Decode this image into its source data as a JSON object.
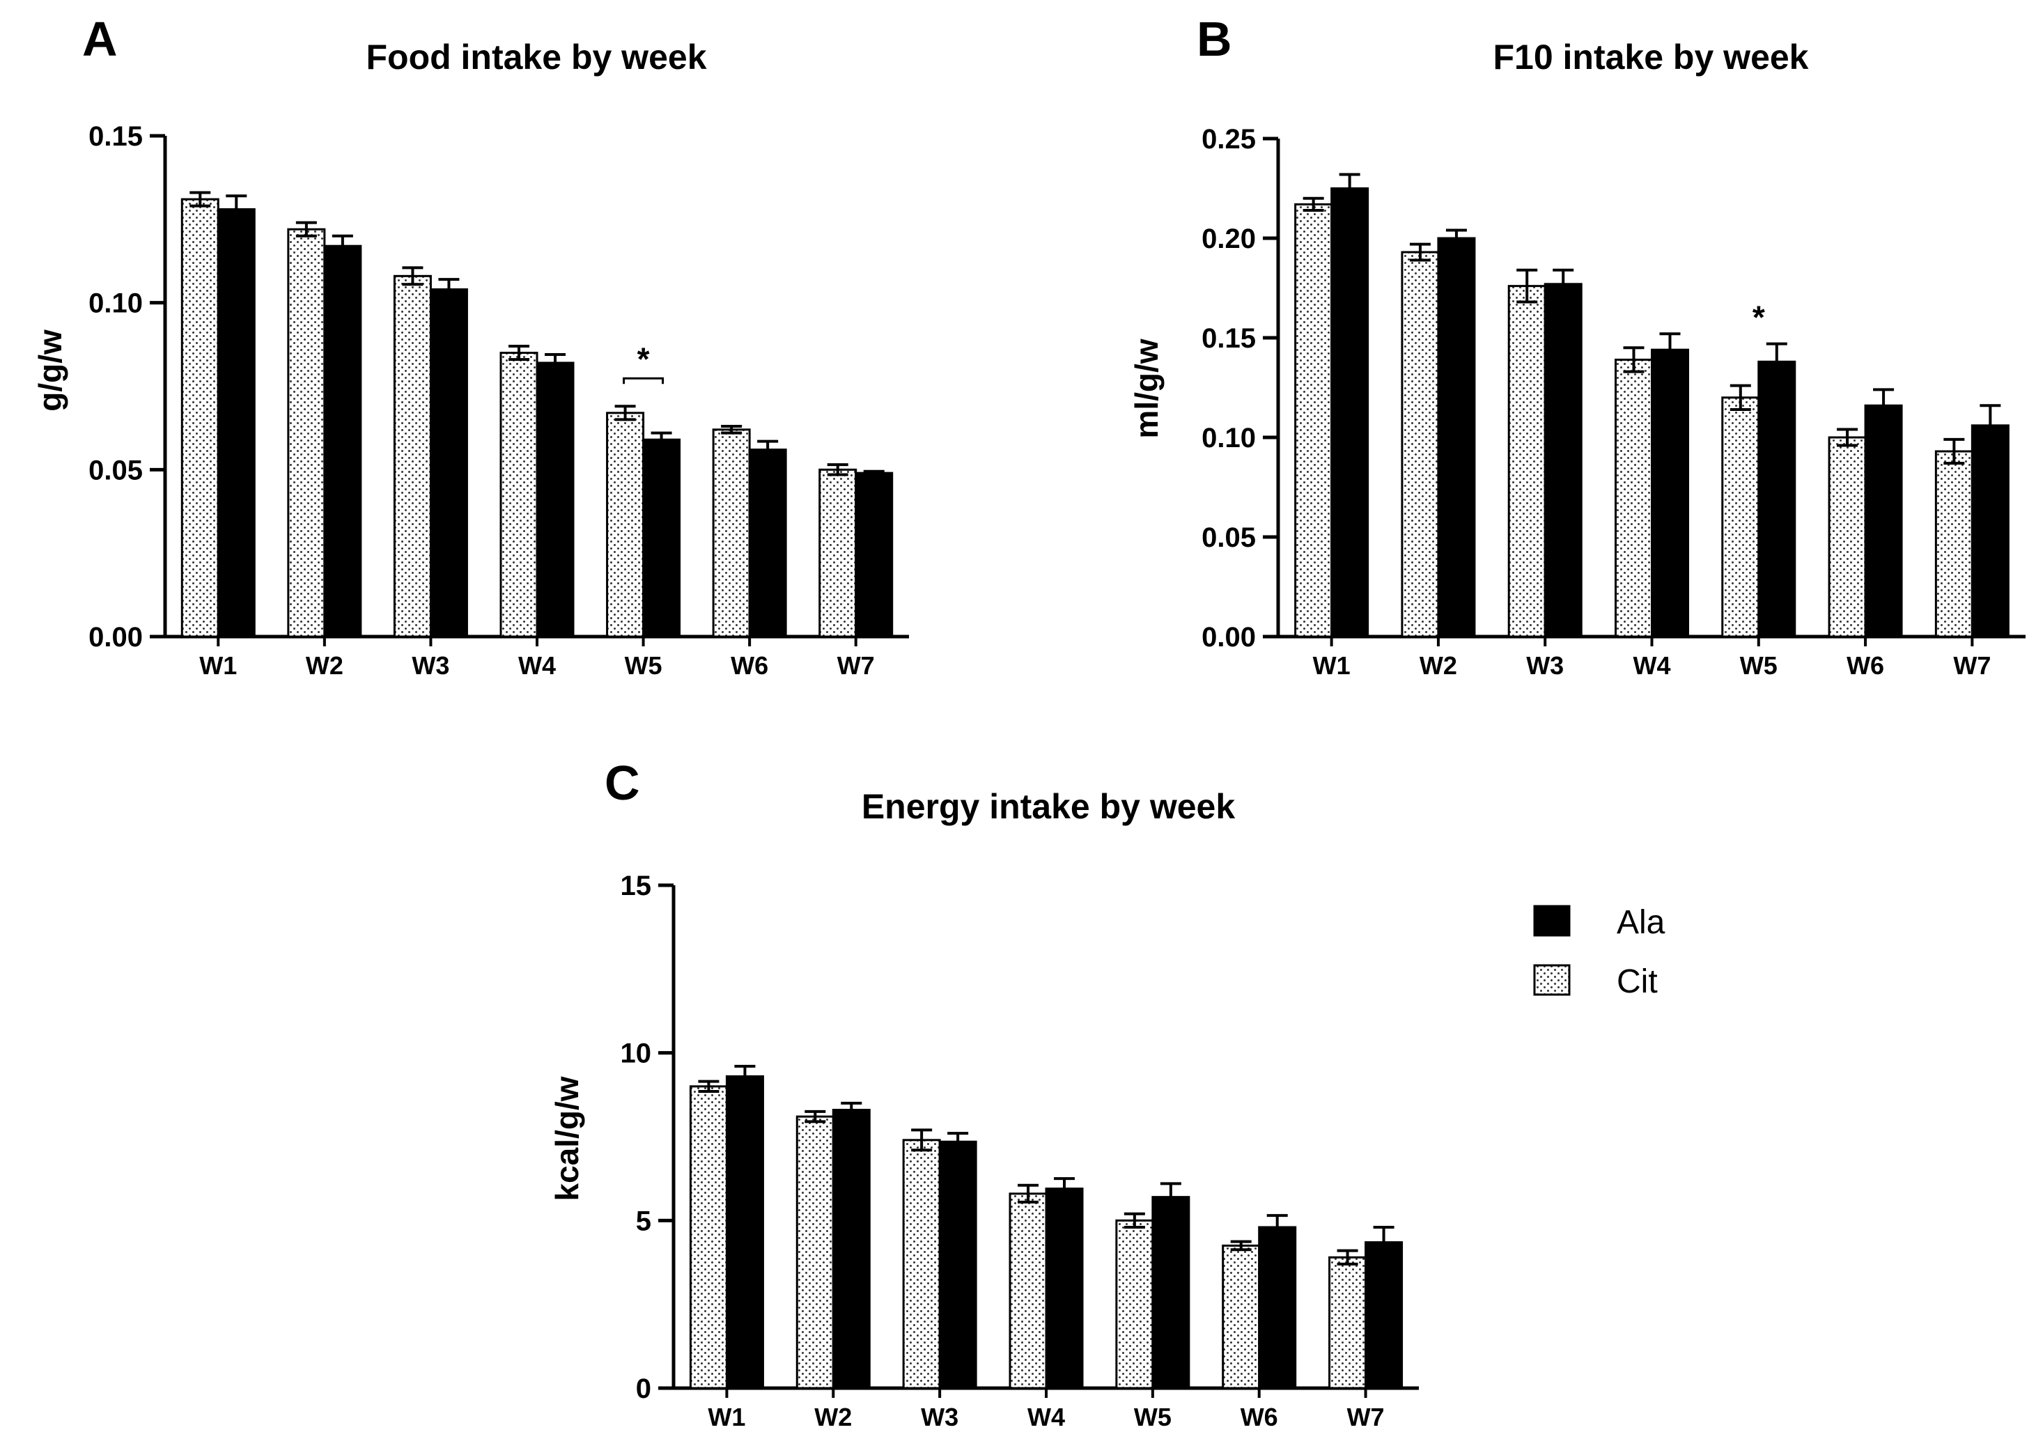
{
  "colors": {
    "ala": "#000000",
    "cit_dots": "#333333",
    "axis": "#000000"
  },
  "legend": {
    "items": [
      {
        "label": "Ala",
        "style": "solid"
      },
      {
        "label": "Cit",
        "style": "dotted"
      }
    ],
    "position": "right of panel C"
  },
  "chart_data": [
    {
      "type": "bar",
      "panel": "A",
      "title": "Food intake by week",
      "xlabel": "",
      "ylabel": "g/g/w",
      "categories": [
        "W1",
        "W2",
        "W3",
        "W4",
        "W5",
        "W6",
        "W7"
      ],
      "ylim": [
        0,
        0.15
      ],
      "yticks": [
        0,
        0.05,
        0.1,
        0.15
      ],
      "ytick_labels": [
        "0.00",
        "0.05",
        "0.10",
        "0.15"
      ],
      "series": [
        {
          "name": "Cit",
          "values": [
            0.131,
            0.122,
            0.108,
            0.085,
            0.067,
            0.062,
            0.05
          ],
          "errors": [
            0.002,
            0.002,
            0.0025,
            0.002,
            0.002,
            0.001,
            0.0015
          ]
        },
        {
          "name": "Ala",
          "values": [
            0.128,
            0.117,
            0.104,
            0.082,
            0.059,
            0.056,
            0.049
          ],
          "errors": [
            0.004,
            0.003,
            0.003,
            0.0025,
            0.002,
            0.0025,
            0.0005
          ]
        }
      ],
      "annotations": [
        {
          "category": "W5",
          "text": "*",
          "bracket": true
        }
      ]
    },
    {
      "type": "bar",
      "panel": "B",
      "title": "F10 intake by week",
      "xlabel": "",
      "ylabel": "ml/g/w",
      "categories": [
        "W1",
        "W2",
        "W3",
        "W4",
        "W5",
        "W6",
        "W7"
      ],
      "ylim": [
        0,
        0.25
      ],
      "yticks": [
        0,
        0.05,
        0.1,
        0.15,
        0.2,
        0.25
      ],
      "ytick_labels": [
        "0.00",
        "0.05",
        "0.10",
        "0.15",
        "0.20",
        "0.25"
      ],
      "series": [
        {
          "name": "Cit",
          "values": [
            0.217,
            0.193,
            0.176,
            0.139,
            0.12,
            0.1,
            0.093
          ],
          "errors": [
            0.003,
            0.004,
            0.008,
            0.006,
            0.006,
            0.004,
            0.006
          ]
        },
        {
          "name": "Ala",
          "values": [
            0.225,
            0.2,
            0.177,
            0.144,
            0.138,
            0.116,
            0.106
          ],
          "errors": [
            0.007,
            0.004,
            0.007,
            0.008,
            0.009,
            0.008,
            0.01
          ]
        }
      ],
      "annotations": [
        {
          "category": "W5",
          "text": "*",
          "bracket": false
        }
      ]
    },
    {
      "type": "bar",
      "panel": "C",
      "title": "Energy intake by week",
      "xlabel": "",
      "ylabel": "kcal/g/w",
      "categories": [
        "W1",
        "W2",
        "W3",
        "W4",
        "W5",
        "W6",
        "W7"
      ],
      "ylim": [
        0,
        15
      ],
      "yticks": [
        0,
        5,
        10,
        15
      ],
      "ytick_labels": [
        "0",
        "5",
        "10",
        "15"
      ],
      "series": [
        {
          "name": "Cit",
          "values": [
            9.0,
            8.1,
            7.4,
            5.8,
            5.0,
            4.25,
            3.9
          ],
          "errors": [
            0.15,
            0.15,
            0.3,
            0.25,
            0.2,
            0.12,
            0.2
          ]
        },
        {
          "name": "Ala",
          "values": [
            9.3,
            8.3,
            7.35,
            5.95,
            5.7,
            4.8,
            4.35
          ],
          "errors": [
            0.3,
            0.2,
            0.25,
            0.3,
            0.4,
            0.35,
            0.45
          ]
        }
      ],
      "annotations": []
    }
  ]
}
